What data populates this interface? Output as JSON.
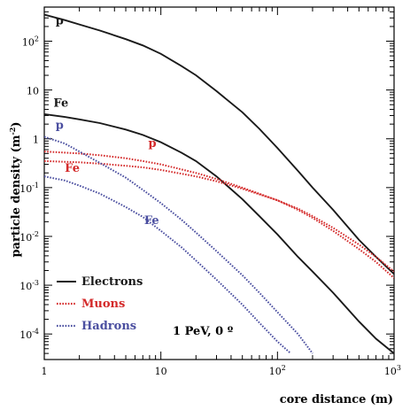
{
  "chart_data": {
    "type": "line",
    "xlabel": "core distance (m)",
    "ylabel": "particle density (m",
    "ylabel_sup": "-2",
    "ylabel_close": ")",
    "xscale": "log",
    "yscale": "log",
    "xlim": [
      1,
      1000
    ],
    "ylim": [
      3e-05,
      500
    ],
    "x_ticks": [
      {
        "value": 1,
        "base": "1",
        "exp": ""
      },
      {
        "value": 10,
        "base": "10",
        "exp": ""
      },
      {
        "value": 100,
        "base": "10",
        "exp": "2"
      },
      {
        "value": 1000,
        "base": "10",
        "exp": "3"
      }
    ],
    "y_ticks": [
      {
        "value": 0.0001,
        "base": "10",
        "exp": "-4"
      },
      {
        "value": 0.001,
        "base": "10",
        "exp": "-3"
      },
      {
        "value": 0.01,
        "base": "10",
        "exp": "-2"
      },
      {
        "value": 0.1,
        "base": "10",
        "exp": "-1"
      },
      {
        "value": 1,
        "base": "1",
        "exp": ""
      },
      {
        "value": 10,
        "base": "10",
        "exp": ""
      },
      {
        "value": 100,
        "base": "10",
        "exp": "2"
      }
    ],
    "annotation": "1 PeV, 0 º",
    "colors": {
      "electrons": "#1a1a1a",
      "muons": "#d42a2a",
      "hadrons": "#4b4fa0"
    },
    "legend": {
      "position": "bottom-left",
      "entries": [
        {
          "label": "Electrons",
          "color": "#1a1a1a",
          "style": "solid"
        },
        {
          "label": "Muons",
          "color": "#d42a2a",
          "style": "dotted"
        },
        {
          "label": "Hadrons",
          "color": "#4b4fa0",
          "style": "dotted"
        }
      ]
    },
    "series": [
      {
        "key": "electrons-p",
        "label": "p",
        "component": "electrons",
        "style": "solid",
        "color": "#1a1a1a",
        "label_at": [
          1.25,
          220
        ],
        "x": [
          1,
          1.5,
          2,
          3,
          5,
          7,
          10,
          15,
          20,
          30,
          50,
          70,
          100,
          150,
          200,
          300,
          500,
          700,
          1000
        ],
        "y": [
          350,
          270,
          220,
          165,
          110,
          82,
          55,
          31,
          20,
          9.5,
          3.5,
          1.6,
          0.65,
          0.22,
          0.1,
          0.035,
          0.0085,
          0.0038,
          0.0017
        ]
      },
      {
        "key": "electrons-fe",
        "label": "Fe",
        "component": "electrons",
        "style": "solid",
        "color": "#1a1a1a",
        "label_at": [
          1.2,
          4.5
        ],
        "x": [
          1,
          1.5,
          2,
          3,
          5,
          7,
          10,
          15,
          20,
          30,
          50,
          70,
          100,
          150,
          200,
          300,
          500,
          700,
          1000
        ],
        "y": [
          3.2,
          2.8,
          2.5,
          2.1,
          1.55,
          1.2,
          0.85,
          0.52,
          0.35,
          0.17,
          0.058,
          0.026,
          0.011,
          0.0038,
          0.0019,
          0.0007,
          0.00018,
          8e-05,
          4e-05
        ]
      },
      {
        "key": "muons-p",
        "label": "p",
        "component": "muons",
        "style": "dotted",
        "color": "#d42a2a",
        "label_at": [
          7.8,
          0.68
        ],
        "x": [
          1,
          2,
          3,
          5,
          7,
          10,
          20,
          30,
          50,
          100,
          150,
          200,
          300,
          500,
          700,
          1000
        ],
        "y": [
          0.55,
          0.5,
          0.46,
          0.4,
          0.35,
          0.3,
          0.2,
          0.15,
          0.1,
          0.055,
          0.035,
          0.024,
          0.013,
          0.0055,
          0.003,
          0.0014
        ]
      },
      {
        "key": "muons-fe",
        "label": "Fe",
        "component": "muons",
        "style": "dotted",
        "color": "#d42a2a",
        "label_at": [
          1.5,
          0.21
        ],
        "x": [
          1,
          2,
          3,
          5,
          7,
          10,
          20,
          30,
          50,
          100,
          150,
          200,
          300,
          500,
          700,
          1000
        ],
        "y": [
          0.35,
          0.33,
          0.31,
          0.28,
          0.26,
          0.23,
          0.17,
          0.135,
          0.095,
          0.055,
          0.037,
          0.026,
          0.015,
          0.0068,
          0.0038,
          0.0019
        ]
      },
      {
        "key": "hadrons-p",
        "label": "p",
        "component": "hadrons",
        "style": "dotted",
        "color": "#4b4fa0",
        "label_at": [
          1.25,
          1.6
        ],
        "x": [
          1,
          1.5,
          2,
          3,
          5,
          7,
          10,
          15,
          20,
          30,
          50,
          70,
          100,
          150,
          200
        ],
        "y": [
          1.1,
          0.8,
          0.55,
          0.32,
          0.16,
          0.09,
          0.048,
          0.022,
          0.012,
          0.005,
          0.0016,
          0.0007,
          0.00028,
          0.0001,
          4e-05
        ]
      },
      {
        "key": "hadrons-fe",
        "label": "Fe",
        "component": "hadrons",
        "style": "dotted",
        "color": "#4b4fa0",
        "label_at": [
          7.2,
          0.018
        ],
        "x": [
          1,
          1.5,
          2,
          3,
          5,
          7,
          10,
          15,
          20,
          30,
          50,
          70,
          100,
          130
        ],
        "y": [
          0.17,
          0.14,
          0.11,
          0.075,
          0.04,
          0.025,
          0.013,
          0.006,
          0.0032,
          0.0013,
          0.0004,
          0.00017,
          7e-05,
          4e-05
        ]
      }
    ]
  }
}
